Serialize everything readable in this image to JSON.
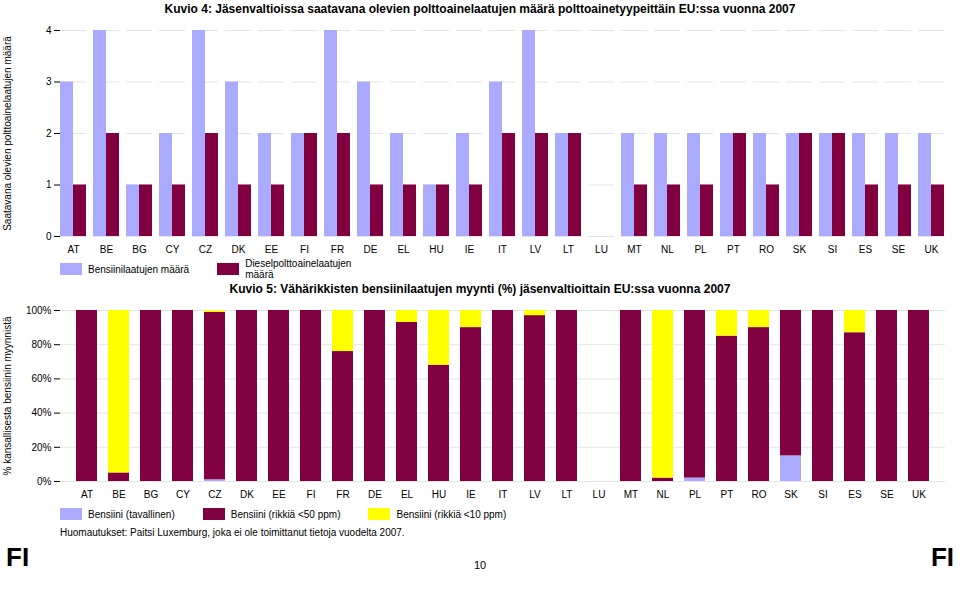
{
  "chart_data": [
    {
      "type": "bar",
      "title": "Kuvio 4: Jäsenvaltioissa saatavana olevien polttoainelaatujen määrä polttoainetyypeittäin EU:ssa vuonna 2007",
      "ylabel": "Saatavana olevien polttoainelaatujen määrä",
      "categories": [
        "AT",
        "BE",
        "BG",
        "CY",
        "CZ",
        "DK",
        "EE",
        "FI",
        "FR",
        "DE",
        "EL",
        "HU",
        "IE",
        "IT",
        "LV",
        "LT",
        "LU",
        "MT",
        "NL",
        "PL",
        "PT",
        "RO",
        "SK",
        "SI",
        "ES",
        "SE",
        "UK"
      ],
      "series": [
        {
          "name": "Bensiinilaatujen määrä",
          "color": "#aaaaff",
          "values": [
            3,
            4,
            1,
            2,
            4,
            3,
            2,
            2,
            4,
            3,
            2,
            1,
            2,
            3,
            4,
            2,
            0,
            2,
            2,
            2,
            2,
            2,
            2,
            2,
            2,
            2,
            2
          ]
        },
        {
          "name": "Dieselpolttoainelaatujen\nmäärä",
          "color": "#800040",
          "values": [
            1,
            2,
            1,
            1,
            2,
            1,
            1,
            2,
            2,
            1,
            1,
            1,
            1,
            2,
            2,
            2,
            0,
            1,
            1,
            1,
            2,
            1,
            2,
            2,
            1,
            1,
            1
          ]
        }
      ],
      "ylim": [
        0,
        4
      ],
      "yticks": [
        0,
        1,
        2,
        3,
        4
      ],
      "grid": true,
      "legend": "bottom"
    },
    {
      "type": "bar",
      "title": "Kuvio 5: Vähärikkisten bensiinilaatujen myynti (%) jäsenvaltioittain EU:ssa vuonna 2007",
      "ylabel": "% kansallisesta bensiinin myynnistä",
      "categories": [
        "AT",
        "BE",
        "BG",
        "CY",
        "CZ",
        "DK",
        "EE",
        "FI",
        "FR",
        "DE",
        "EL",
        "HU",
        "IE",
        "IT",
        "LV",
        "LT",
        "LU",
        "MT",
        "NL",
        "PL",
        "PT",
        "RO",
        "SK",
        "SI",
        "ES",
        "SE",
        "UK"
      ],
      "series": [
        {
          "name": "Bensiini (tavallinen)",
          "color": "#aaaaff",
          "values": [
            0,
            0,
            0,
            0,
            1,
            0,
            0,
            0,
            0,
            0,
            0,
            0,
            0,
            0,
            0,
            0,
            0,
            0,
            0,
            2,
            0,
            0,
            15,
            0,
            0,
            0,
            0
          ]
        },
        {
          "name": "Bensiini (rikkiä <50 ppm)",
          "color": "#800040",
          "values": [
            100,
            5,
            100,
            100,
            98,
            100,
            100,
            100,
            76,
            100,
            93,
            68,
            90,
            100,
            97,
            100,
            0,
            100,
            2,
            98,
            85,
            90,
            85,
            100,
            87,
            100,
            100
          ]
        },
        {
          "name": "Bensiini (rikkiä <10 ppm)",
          "color": "#ffff00",
          "values": [
            0,
            95,
            0,
            0,
            1,
            0,
            0,
            0,
            24,
            0,
            7,
            32,
            10,
            0,
            3,
            0,
            0,
            0,
            98,
            0,
            15,
            10,
            0,
            0,
            13,
            0,
            0
          ]
        }
      ],
      "stacked": true,
      "ylim": [
        0,
        100
      ],
      "yticks": [
        {
          "value": 0,
          "label": "0%"
        },
        {
          "value": 20,
          "label": "20%"
        },
        {
          "value": 40,
          "label": "40%"
        },
        {
          "value": 60,
          "label": "60%"
        },
        {
          "value": 80,
          "label": "80%"
        },
        {
          "value": 100,
          "label": "100%"
        }
      ],
      "grid": true,
      "legend": "bottom",
      "annotations": [
        "Huomautukset: Paitsi Luxemburg, joka ei ole toimittanut tietoja vuodelta 2007.",
        "FI",
        "10",
        "FI"
      ]
    }
  ]
}
